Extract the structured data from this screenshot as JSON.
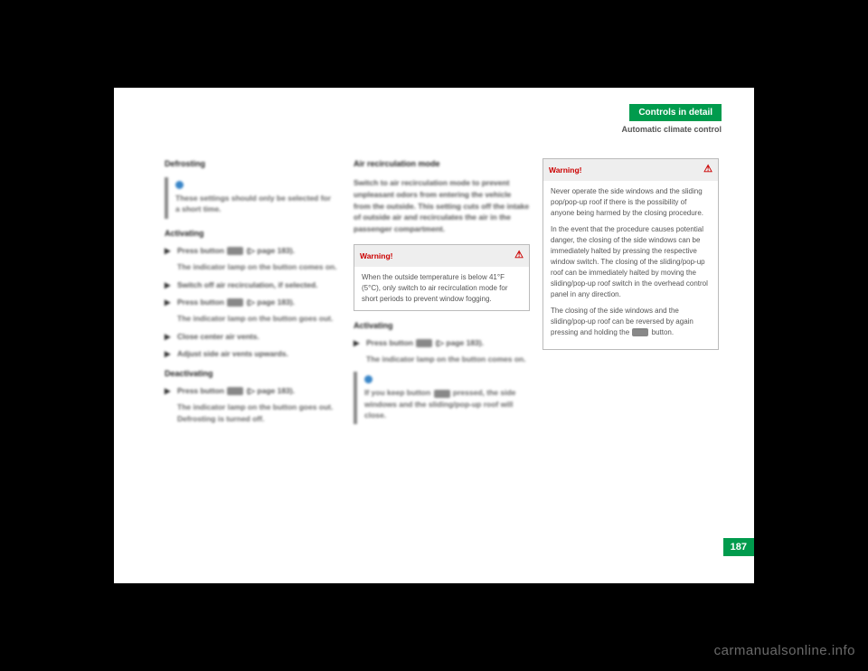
{
  "header": {
    "chapter": "Controls in detail",
    "section": "Automatic climate control"
  },
  "page_number": "187",
  "watermark": "carmanualsonline.info",
  "col1": {
    "heading": "Defrosting",
    "info": "These settings should only be selected for a short time.",
    "sub1": "Activating",
    "step1_a": "Press button ",
    "step1_b": " (▷ page 183).",
    "res1": "The indicator lamp on the button comes on.",
    "step2": "Switch off air recirculation, if selected.",
    "step3_a": "Press button ",
    "step3_b": " (▷ page 183).",
    "res3": "The indicator lamp on the button goes out.",
    "step4": "Close center air vents.",
    "step5": "Adjust side air vents upwards.",
    "sub2": "Deactivating",
    "step6_a": "Press button ",
    "step6_b": " (▷ page 183).",
    "res6": "The indicator lamp on the button goes out. Defrosting is turned off."
  },
  "col2": {
    "heading": "Air recirculation mode",
    "intro": "Switch to air recirculation mode to prevent unpleasant odors from entering the vehicle from the outside. This setting cuts off the intake of outside air and recirculates the air in the passenger compartment.",
    "warn_title": "Warning!",
    "warn_body": "When the outside temperature is below 41°F (5°C), only switch to air recirculation mode for short periods to prevent window fogging.",
    "sub1": "Activating",
    "step1_a": "Press button ",
    "step1_b": " (▷ page 183).",
    "res1": "The indicator lamp on the button comes on.",
    "info_a": "If you keep button ",
    "info_b": " pressed, the side windows and the sliding/pop-up roof will close."
  },
  "col3": {
    "warn_title": "Warning!",
    "warn_p1": "Never operate the side windows and the sliding pop/pop-up roof if there is the possibility of anyone being harmed by the closing procedure.",
    "warn_p2": "In the event that the procedure causes potential danger, the closing of the side windows can be immediately halted by pressing the respective window switch. The closing of the sliding/pop-up roof can be immediately halted by moving the sliding/pop-up roof switch in the overhead control panel in any direction.",
    "warn_p3_a": "The closing of the side windows and the sliding/pop-up roof can be reversed by again pressing and holding the ",
    "warn_p3_b": " button."
  },
  "colors": {
    "accent": "#009b4d",
    "warn": "#c00000",
    "page_bg": "#ffffff",
    "outer_bg": "#000000"
  }
}
